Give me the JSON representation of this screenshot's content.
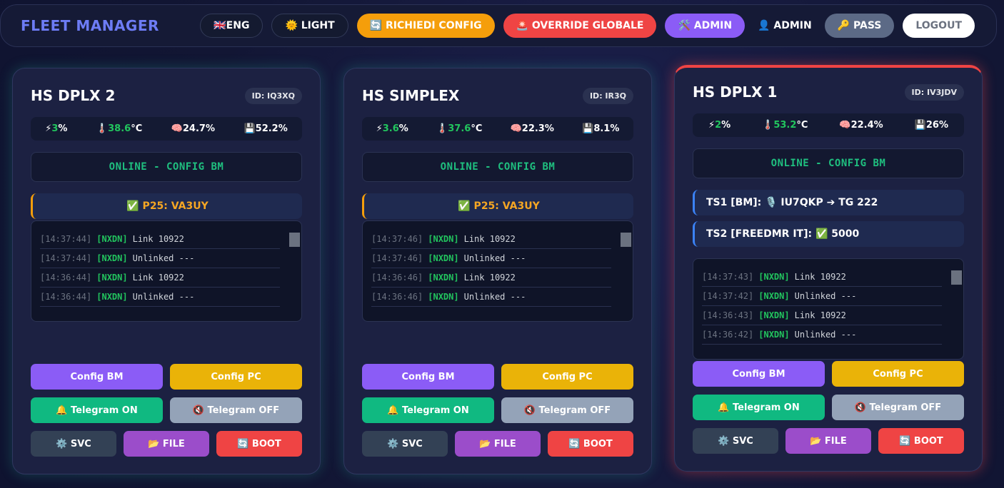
{
  "header": {
    "title": "FLEET MANAGER",
    "buttons": [
      "🇬🇧ENG",
      "🌞 LIGHT",
      "🔄 RICHIEDI CONFIG",
      "🚨 OVERRIDE GLOBALE",
      "🛠️ ADMIN",
      "👤 ADMIN",
      "🔑 PASS",
      "LOGOUT"
    ]
  },
  "cards": [
    {
      "title": "HS DPLX 2",
      "id": "ID: IQ3XQ",
      "stats": [
        {
          "icon": "⚡",
          "value": 3,
          "unit": "%"
        },
        {
          "icon": "🌡️",
          "value": 38.6,
          "unit": "°C"
        },
        {
          "icon": "🧠",
          "value": 24.7,
          "unit": "%"
        },
        {
          "icon": "💾",
          "value": 52.2,
          "unit": "%"
        }
      ],
      "status": "ONLINE - CONFIG BM",
      "slots": [
        "✅ P25: VA3UY"
      ],
      "log": [
        [
          "[14:37:44]",
          "[NXDN]",
          "Link 10922"
        ],
        [
          "[14:37:44]",
          "[NXDN]",
          "Unlinked ---"
        ],
        [
          "[14:36:44]",
          "[NXDN]",
          "Link 10922"
        ],
        [
          "[14:36:44]",
          "[NXDN]",
          "Unlinked ---"
        ]
      ],
      "buttons": [
        [
          "Config BM",
          "Config PC"
        ],
        [
          "🔔 Telegram ON",
          "🔇 Telegram OFF"
        ],
        [
          "⚙️ SVC",
          "📂 FILE",
          "🔄 BOOT"
        ]
      ]
    },
    {
      "title": "HS SIMPLEX",
      "id": "ID: IR3Q",
      "stats": [
        {
          "icon": "⚡",
          "value": 3.6,
          "unit": "%"
        },
        {
          "icon": "🌡️",
          "value": 37.6,
          "unit": "°C"
        },
        {
          "icon": "🧠",
          "value": 22.3,
          "unit": "%"
        },
        {
          "icon": "💾",
          "value": 8.1,
          "unit": "%"
        }
      ],
      "status": "ONLINE - CONFIG BM",
      "slots": [
        "✅ P25: VA3UY"
      ],
      "log": [
        [
          "[14:37:46]",
          "[NXDN]",
          "Link 10922"
        ],
        [
          "[14:37:46]",
          "[NXDN]",
          "Unlinked ---"
        ],
        [
          "[14:36:46]",
          "[NXDN]",
          "Link 10922"
        ],
        [
          "[14:36:46]",
          "[NXDN]",
          "Unlinked ---"
        ]
      ],
      "buttons": [
        [
          "Config BM",
          "Config PC"
        ],
        [
          "🔔 Telegram ON",
          "🔇 Telegram OFF"
        ],
        [
          "⚙️ SVC",
          "📂 FILE",
          "🔄 BOOT"
        ]
      ]
    },
    {
      "title": "HS DPLX 1",
      "id": "ID: IV3JDV",
      "stats": [
        {
          "icon": "⚡",
          "value": 2,
          "unit": "%"
        },
        {
          "icon": "🌡️",
          "value": 53.2,
          "unit": "°C"
        },
        {
          "icon": "🧠",
          "value": 22.4,
          "unit": "%"
        },
        {
          "icon": "💾",
          "value": 26,
          "unit": "%"
        }
      ],
      "status": "ONLINE - CONFIG BM",
      "slots": [
        "TS1 [BM]: 🎙️ IU7QKP ➔ TG 222",
        "TS2 [FREEDMR IT]: ✅ 5000"
      ],
      "log": [
        [
          "[14:37:43]",
          "[NXDN]",
          "Link 10922"
        ],
        [
          "[14:37:42]",
          "[NXDN]",
          "Unlinked ---"
        ],
        [
          "[14:36:43]",
          "[NXDN]",
          "Link 10922"
        ],
        [
          "[14:36:42]",
          "[NXDN]",
          "Unlinked ---"
        ]
      ],
      "buttons": [
        [
          "Config BM",
          "Config PC"
        ],
        [
          "🔔 Telegram ON",
          "🔇 Telegram OFF"
        ],
        [
          "⚙️ SVC",
          "📂 FILE",
          "🔄 BOOT"
        ]
      ]
    }
  ]
}
